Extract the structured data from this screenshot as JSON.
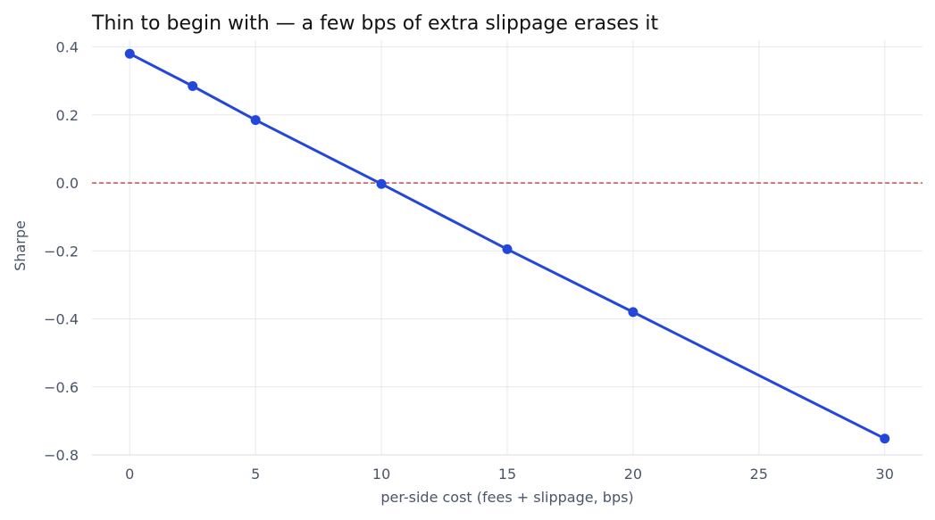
{
  "chart_data": {
    "type": "line",
    "title": "Thin to begin with — a few bps of extra slippage erases it",
    "xlabel": "per-side cost (fees + slippage, bps)",
    "ylabel": "Sharpe",
    "x": [
      0,
      2.5,
      5,
      10,
      15,
      20,
      30
    ],
    "y": [
      0.38,
      0.285,
      0.185,
      -0.003,
      -0.195,
      -0.38,
      -0.752
    ],
    "xlim": [
      -1.5,
      31.5
    ],
    "ylim": [
      -0.8,
      0.42
    ],
    "xticks": [
      0,
      5,
      10,
      15,
      20,
      25,
      30
    ],
    "xtick_labels": [
      "0",
      "5",
      "10",
      "15",
      "20",
      "25",
      "30"
    ],
    "yticks": [
      0.4,
      0.2,
      0.0,
      -0.2,
      -0.4,
      -0.6,
      -0.8
    ],
    "ytick_labels": [
      "0.4",
      "0.2",
      "0.0",
      "−0.2",
      "−0.4",
      "−0.6",
      "−0.8"
    ],
    "reference_line": {
      "y": 0,
      "style": "dashed",
      "color": "#c0504d"
    },
    "line_color": "#2347d9",
    "grid": true,
    "legend": "none"
  }
}
